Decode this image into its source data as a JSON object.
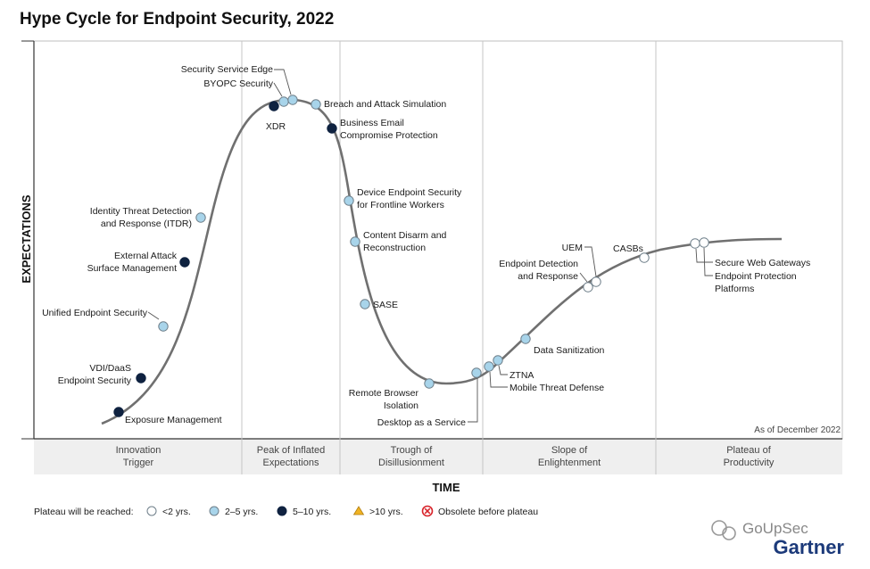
{
  "title": "Hype Cycle for Endpoint Security, 2022",
  "chart_data": {
    "type": "diagram",
    "y_axis_label": "EXPECTATIONS",
    "x_axis_label": "TIME",
    "as_of": "As of December 2022",
    "phases": [
      {
        "line1": "Innovation",
        "line2": "Trigger"
      },
      {
        "line1": "Peak of Inflated",
        "line2": "Expectations"
      },
      {
        "line1": "Trough of",
        "line2": "Disillusionment"
      },
      {
        "line1": "Slope of",
        "line2": "Enlightenment"
      },
      {
        "line1": "Plateau of",
        "line2": "Productivity"
      }
    ],
    "legend": {
      "label": "Plateau will be reached:",
      "items": [
        {
          "key": "lt2",
          "text": "<2 yrs.",
          "color": "#ffffff"
        },
        {
          "key": "2to5",
          "text": "2–5 yrs.",
          "color": "#a8d4ea"
        },
        {
          "key": "5to10",
          "text": "5–10 yrs.",
          "color": "#0f2240"
        },
        {
          "key": "gt10",
          "text": ">10 yrs.",
          "color": "#f0b323"
        },
        {
          "key": "obsolete",
          "text": "Obsolete before plateau",
          "color": "#d8232a"
        }
      ]
    },
    "technologies": [
      {
        "lines": [
          "Exposure Management"
        ],
        "plateau": "5to10"
      },
      {
        "lines": [
          "VDI/DaaS",
          "Endpoint Security"
        ],
        "plateau": "5to10"
      },
      {
        "lines": [
          "Unified Endpoint Security"
        ],
        "plateau": "2to5"
      },
      {
        "lines": [
          "External Attack",
          "Surface Management"
        ],
        "plateau": "5to10"
      },
      {
        "lines": [
          "Identity Threat Detection",
          "and Response (ITDR)"
        ],
        "plateau": "2to5"
      },
      {
        "lines": [
          "XDR"
        ],
        "plateau": "5to10"
      },
      {
        "lines": [
          "BYOPC Security"
        ],
        "plateau": "2to5"
      },
      {
        "lines": [
          "Security Service Edge"
        ],
        "plateau": "2to5"
      },
      {
        "lines": [
          "Breach and Attack Simulation"
        ],
        "plateau": "2to5"
      },
      {
        "lines": [
          "Business Email",
          "Compromise Protection"
        ],
        "plateau": "5to10"
      },
      {
        "lines": [
          "Device Endpoint Security",
          "for Frontline Workers"
        ],
        "plateau": "2to5"
      },
      {
        "lines": [
          "Content Disarm and",
          "Reconstruction"
        ],
        "plateau": "2to5"
      },
      {
        "lines": [
          "SASE"
        ],
        "plateau": "2to5"
      },
      {
        "lines": [
          "Remote Browser",
          "Isolation"
        ],
        "plateau": "2to5"
      },
      {
        "lines": [
          "Desktop as a Service"
        ],
        "plateau": "2to5"
      },
      {
        "lines": [
          "Mobile Threat Defense"
        ],
        "plateau": "2to5"
      },
      {
        "lines": [
          "ZTNA"
        ],
        "plateau": "2to5"
      },
      {
        "lines": [
          "Data Sanitization"
        ],
        "plateau": "2to5"
      },
      {
        "lines": [
          "Endpoint Detection",
          "and Response"
        ],
        "plateau": "lt2"
      },
      {
        "lines": [
          "UEM"
        ],
        "plateau": "lt2"
      },
      {
        "lines": [
          "CASBs"
        ],
        "plateau": "lt2"
      },
      {
        "lines": [
          "Secure Web Gateways"
        ],
        "plateau": "lt2"
      },
      {
        "lines": [
          "Endpoint Protection",
          "Platforms"
        ],
        "plateau": "lt2"
      }
    ]
  },
  "watermark": "GoUpSec",
  "brand": "Gartner"
}
